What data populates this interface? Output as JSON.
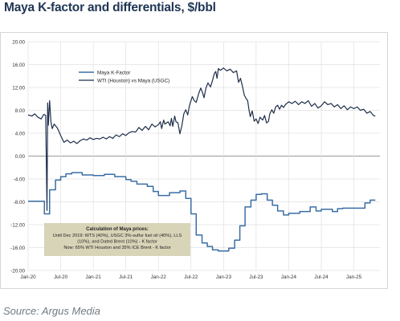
{
  "title": "Maya K-factor and differentials, $/bbl",
  "source": "Source: Argus Media",
  "colors": {
    "k_factor": "#3a6ea5",
    "wti_vs_maya": "#1e2f4a",
    "annotation_box": "#d8d4b8",
    "grid": "#e1e1e1",
    "zero_line": "#999999"
  },
  "chart_data": {
    "type": "line",
    "title": "Maya K-factor and differentials, $/bbl",
    "xlabel": "",
    "ylabel": "",
    "ylim": [
      -20,
      20
    ],
    "ytick_labels": [
      "20.00",
      "16.00",
      "12.00",
      "8.00",
      "4.00",
      "0.00",
      "-4.00",
      "-8.00",
      "-12.00",
      "-16.00",
      "-20.00"
    ],
    "xtick_labels": [
      "Jan-20",
      "Jul-20",
      "Jan-21",
      "Jul-21",
      "Jan-22",
      "Jul-22",
      "Jan-23",
      "Jul-23",
      "Jan-24",
      "Jul-24",
      "Jan-25"
    ],
    "grid": true,
    "legend": "upper-left inside plot",
    "series": [
      {
        "name": "Maya K-Factor",
        "color": "#3a6ea5",
        "points": [
          [
            2020.0,
            -7.9
          ],
          [
            2020.25,
            -7.9
          ],
          [
            2020.25,
            -10.1
          ],
          [
            2020.33,
            -10.1
          ],
          [
            2020.33,
            -5.9
          ],
          [
            2020.42,
            -5.9
          ],
          [
            2020.42,
            -4.2
          ],
          [
            2020.5,
            -4.2
          ],
          [
            2020.5,
            -3.6
          ],
          [
            2020.58,
            -3.6
          ],
          [
            2020.58,
            -3.1
          ],
          [
            2020.67,
            -3.1
          ],
          [
            2020.67,
            -2.9
          ],
          [
            2020.83,
            -2.9
          ],
          [
            2020.83,
            -3.3
          ],
          [
            2021.0,
            -3.3
          ],
          [
            2021.0,
            -3.4
          ],
          [
            2021.17,
            -3.4
          ],
          [
            2021.17,
            -3.2
          ],
          [
            2021.33,
            -3.2
          ],
          [
            2021.33,
            -3.6
          ],
          [
            2021.5,
            -3.6
          ],
          [
            2021.5,
            -4.1
          ],
          [
            2021.58,
            -4.1
          ],
          [
            2021.58,
            -4.4
          ],
          [
            2021.67,
            -4.4
          ],
          [
            2021.67,
            -4.9
          ],
          [
            2021.83,
            -4.9
          ],
          [
            2021.83,
            -5.3
          ],
          [
            2021.92,
            -5.3
          ],
          [
            2021.92,
            -6.2
          ],
          [
            2022.0,
            -6.2
          ],
          [
            2022.0,
            -6.9
          ],
          [
            2022.17,
            -6.9
          ],
          [
            2022.17,
            -6.4
          ],
          [
            2022.33,
            -6.4
          ],
          [
            2022.33,
            -6.1
          ],
          [
            2022.42,
            -6.1
          ],
          [
            2022.42,
            -7.4
          ],
          [
            2022.5,
            -7.4
          ],
          [
            2022.5,
            -10.1
          ],
          [
            2022.58,
            -10.1
          ],
          [
            2022.58,
            -13.8
          ],
          [
            2022.67,
            -13.8
          ],
          [
            2022.67,
            -15.2
          ],
          [
            2022.75,
            -15.2
          ],
          [
            2022.75,
            -15.8
          ],
          [
            2022.83,
            -15.8
          ],
          [
            2022.83,
            -16.4
          ],
          [
            2022.92,
            -16.4
          ],
          [
            2022.92,
            -16.6
          ],
          [
            2023.08,
            -16.6
          ],
          [
            2023.08,
            -16.1
          ],
          [
            2023.17,
            -16.1
          ],
          [
            2023.17,
            -14.7
          ],
          [
            2023.25,
            -14.7
          ],
          [
            2023.25,
            -12.2
          ],
          [
            2023.33,
            -12.2
          ],
          [
            2023.33,
            -8.9
          ],
          [
            2023.42,
            -8.9
          ],
          [
            2023.42,
            -7.7
          ],
          [
            2023.5,
            -7.7
          ],
          [
            2023.5,
            -6.7
          ],
          [
            2023.58,
            -6.7
          ],
          [
            2023.58,
            -6.6
          ],
          [
            2023.67,
            -6.6
          ],
          [
            2023.67,
            -7.7
          ],
          [
            2023.75,
            -7.7
          ],
          [
            2023.75,
            -8.6
          ],
          [
            2023.83,
            -8.6
          ],
          [
            2023.83,
            -9.6
          ],
          [
            2023.92,
            -9.6
          ],
          [
            2023.92,
            -10.3
          ],
          [
            2024.0,
            -10.3
          ],
          [
            2024.0,
            -10.0
          ],
          [
            2024.17,
            -10.0
          ],
          [
            2024.17,
            -9.7
          ],
          [
            2024.33,
            -9.7
          ],
          [
            2024.33,
            -8.9
          ],
          [
            2024.42,
            -8.9
          ],
          [
            2024.42,
            -9.6
          ],
          [
            2024.5,
            -9.6
          ],
          [
            2024.5,
            -9.3
          ],
          [
            2024.67,
            -9.3
          ],
          [
            2024.67,
            -9.7
          ],
          [
            2024.75,
            -9.7
          ],
          [
            2024.75,
            -9.2
          ],
          [
            2024.83,
            -9.2
          ],
          [
            2024.83,
            -9.1
          ],
          [
            2025.17,
            -9.1
          ],
          [
            2025.17,
            -8.2
          ],
          [
            2025.25,
            -8.2
          ],
          [
            2025.25,
            -7.7
          ],
          [
            2025.33,
            -7.7
          ]
        ]
      },
      {
        "name": "WTI (Houston) vs Maya (USGC)",
        "color": "#1e2f4a",
        "points": [
          [
            2020.0,
            7.2
          ],
          [
            2020.06,
            7.0
          ],
          [
            2020.1,
            7.4
          ],
          [
            2020.15,
            6.8
          ],
          [
            2020.2,
            6.5
          ],
          [
            2020.24,
            7.3
          ],
          [
            2020.27,
            7.1
          ],
          [
            2020.29,
            -9.5
          ],
          [
            2020.3,
            9.3
          ],
          [
            2020.31,
            5.4
          ],
          [
            2020.33,
            9.7
          ],
          [
            2020.35,
            6.0
          ],
          [
            2020.37,
            4.8
          ],
          [
            2020.4,
            5.6
          ],
          [
            2020.45,
            4.9
          ],
          [
            2020.5,
            3.6
          ],
          [
            2020.55,
            2.4
          ],
          [
            2020.6,
            2.8
          ],
          [
            2020.65,
            2.3
          ],
          [
            2020.7,
            2.6
          ],
          [
            2020.75,
            2.2
          ],
          [
            2020.8,
            2.7
          ],
          [
            2020.85,
            3.0
          ],
          [
            2020.9,
            2.8
          ],
          [
            2020.95,
            3.2
          ],
          [
            2021.0,
            2.9
          ],
          [
            2021.05,
            3.1
          ],
          [
            2021.1,
            3.0
          ],
          [
            2021.15,
            3.3
          ],
          [
            2021.2,
            3.0
          ],
          [
            2021.25,
            3.4
          ],
          [
            2021.3,
            3.1
          ],
          [
            2021.35,
            3.7
          ],
          [
            2021.4,
            3.4
          ],
          [
            2021.45,
            3.9
          ],
          [
            2021.5,
            3.6
          ],
          [
            2021.55,
            4.1
          ],
          [
            2021.6,
            4.3
          ],
          [
            2021.65,
            4.2
          ],
          [
            2021.7,
            5.0
          ],
          [
            2021.75,
            4.5
          ],
          [
            2021.8,
            5.2
          ],
          [
            2021.85,
            4.6
          ],
          [
            2021.9,
            5.6
          ],
          [
            2021.95,
            5.1
          ],
          [
            2022.0,
            5.5
          ],
          [
            2022.03,
            6.0
          ],
          [
            2022.05,
            4.8
          ],
          [
            2022.08,
            6.3
          ],
          [
            2022.1,
            5.6
          ],
          [
            2022.15,
            6.0
          ],
          [
            2022.18,
            5.3
          ],
          [
            2022.2,
            6.6
          ],
          [
            2022.22,
            5.2
          ],
          [
            2022.25,
            7.0
          ],
          [
            2022.27,
            6.0
          ],
          [
            2022.3,
            5.8
          ],
          [
            2022.33,
            3.9
          ],
          [
            2022.36,
            5.3
          ],
          [
            2022.39,
            7.4
          ],
          [
            2022.42,
            8.1
          ],
          [
            2022.45,
            7.2
          ],
          [
            2022.48,
            9.0
          ],
          [
            2022.52,
            10.4
          ],
          [
            2022.55,
            9.7
          ],
          [
            2022.58,
            9.4
          ],
          [
            2022.62,
            11.0
          ],
          [
            2022.65,
            11.9
          ],
          [
            2022.68,
            11.0
          ],
          [
            2022.7,
            10.2
          ],
          [
            2022.73,
            11.9
          ],
          [
            2022.76,
            12.8
          ],
          [
            2022.8,
            12.1
          ],
          [
            2022.83,
            13.2
          ],
          [
            2022.86,
            14.5
          ],
          [
            2022.88,
            14.8
          ],
          [
            2022.9,
            13.6
          ],
          [
            2022.92,
            15.3
          ],
          [
            2022.95,
            15.0
          ],
          [
            2023.0,
            15.4
          ],
          [
            2023.05,
            14.9
          ],
          [
            2023.1,
            15.2
          ],
          [
            2023.15,
            14.6
          ],
          [
            2023.2,
            14.9
          ],
          [
            2023.23,
            12.9
          ],
          [
            2023.26,
            13.6
          ],
          [
            2023.29,
            12.2
          ],
          [
            2023.32,
            10.6
          ],
          [
            2023.35,
            10.0
          ],
          [
            2023.37,
            9.7
          ],
          [
            2023.39,
            8.1
          ],
          [
            2023.41,
            6.9
          ],
          [
            2023.44,
            7.9
          ],
          [
            2023.47,
            6.1
          ],
          [
            2023.5,
            6.5
          ],
          [
            2023.53,
            5.7
          ],
          [
            2023.56,
            6.8
          ],
          [
            2023.6,
            6.3
          ],
          [
            2023.63,
            7.1
          ],
          [
            2023.66,
            5.8
          ],
          [
            2023.69,
            6.1
          ],
          [
            2023.71,
            7.4
          ],
          [
            2023.74,
            8.1
          ],
          [
            2023.77,
            7.5
          ],
          [
            2023.8,
            8.6
          ],
          [
            2023.83,
            8.9
          ],
          [
            2023.86,
            8.2
          ],
          [
            2023.89,
            8.9
          ],
          [
            2023.92,
            8.5
          ],
          [
            2023.95,
            9.0
          ],
          [
            2024.0,
            9.5
          ],
          [
            2024.05,
            9.2
          ],
          [
            2024.1,
            9.6
          ],
          [
            2024.15,
            9.0
          ],
          [
            2024.2,
            9.5
          ],
          [
            2024.25,
            9.2
          ],
          [
            2024.3,
            9.7
          ],
          [
            2024.35,
            8.7
          ],
          [
            2024.4,
            9.2
          ],
          [
            2024.45,
            8.4
          ],
          [
            2024.5,
            8.8
          ],
          [
            2024.55,
            9.5
          ],
          [
            2024.6,
            9.0
          ],
          [
            2024.65,
            9.2
          ],
          [
            2024.7,
            8.6
          ],
          [
            2024.75,
            9.0
          ],
          [
            2024.8,
            8.3
          ],
          [
            2024.85,
            8.8
          ],
          [
            2024.9,
            8.1
          ],
          [
            2024.95,
            8.6
          ],
          [
            2025.0,
            8.3
          ],
          [
            2025.05,
            8.6
          ],
          [
            2025.1,
            8.0
          ],
          [
            2025.15,
            8.2
          ],
          [
            2025.2,
            7.5
          ],
          [
            2025.25,
            7.8
          ],
          [
            2025.3,
            7.1
          ],
          [
            2025.33,
            7.0
          ]
        ]
      }
    ],
    "annotation": {
      "heading": "Calculation of Maya prices:",
      "lines": [
        "Until Dec 2019: WTS (40%), USGC 3%-sulfur fuel oil (40%), LLS",
        "(10%), and Dated Brent (10%) - K factor",
        "Now: 65% WTI Houston and 35% ICE Brent - K factor"
      ]
    }
  }
}
